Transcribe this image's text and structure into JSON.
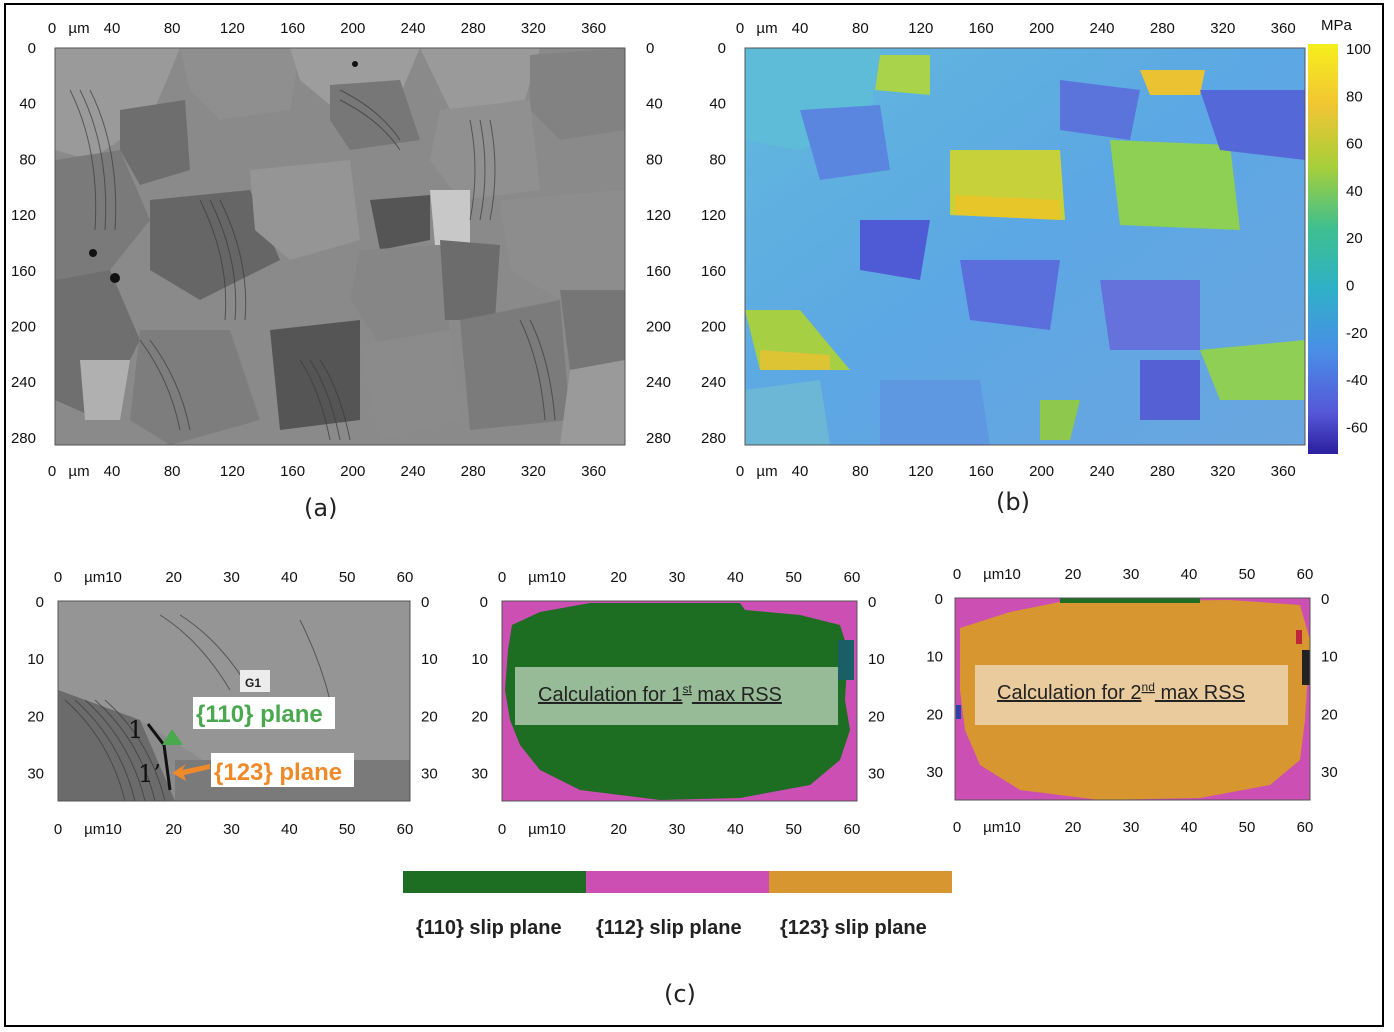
{
  "panel_a": {
    "x_ticks": [
      "0",
      "µm",
      "40",
      "80",
      "120",
      "160",
      "200",
      "240",
      "280",
      "320",
      "360"
    ],
    "y_ticks": [
      "0",
      "40",
      "80",
      "120",
      "160",
      "200",
      "240",
      "280"
    ],
    "caption": "(a)"
  },
  "panel_b": {
    "x_ticks": [
      "0",
      "µm",
      "40",
      "80",
      "120",
      "160",
      "200",
      "240",
      "280",
      "320",
      "360"
    ],
    "y_ticks": [
      "0",
      "40",
      "80",
      "120",
      "160",
      "200",
      "240",
      "280"
    ],
    "colorbar_unit": "MPa",
    "colorbar_ticks": [
      "100",
      "80",
      "60",
      "40",
      "20",
      "0",
      "-20",
      "-40",
      "-60"
    ],
    "caption": "(b)"
  },
  "panel_c": {
    "x_ticks": [
      "0",
      "µm10",
      "20",
      "30",
      "40",
      "50",
      "60"
    ],
    "y_ticks": [
      "0",
      "10",
      "20",
      "30"
    ],
    "grain_label": "G1",
    "trace_1": "1",
    "trace_1p": "1’",
    "plane_110": "{110} plane",
    "plane_123": "{123} plane",
    "calc_1_prefix": "Calculation for 1",
    "calc_1_sup": "st",
    "calc_1_suffix": " max RSS",
    "calc_2_prefix": "Calculation for 2",
    "calc_2_sup": "nd",
    "calc_2_suffix": " max RSS",
    "caption": "(c)"
  },
  "legend": {
    "items": [
      {
        "label": "{110} slip plane",
        "color": "#1d6d22"
      },
      {
        "label": "{112} slip plane",
        "color": "#cc4fb3"
      },
      {
        "label": "{123} slip plane",
        "color": "#d79630"
      }
    ]
  }
}
